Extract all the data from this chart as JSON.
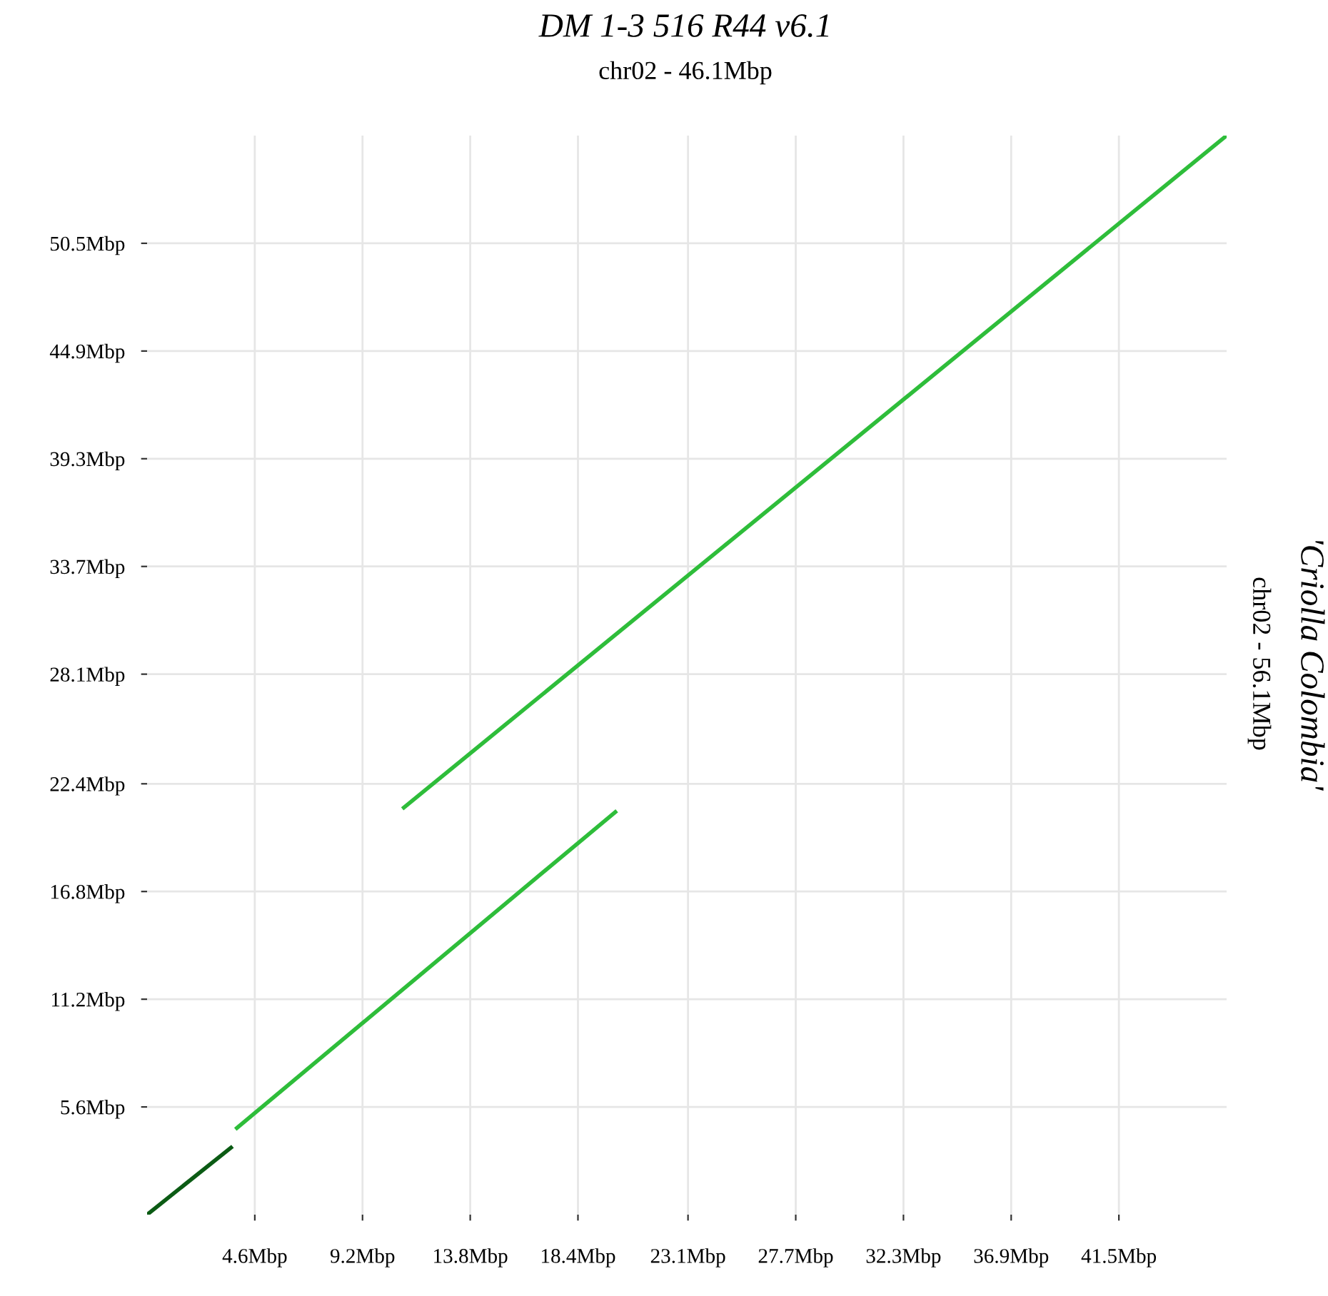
{
  "chart_data": {
    "type": "line",
    "title": "DM 1-3 516 R44 v6.1",
    "subtitle": "chr02 - 46.1Mbp",
    "ylabel": "'Criolla Colombia'\nchr02 - 56.1Mbp",
    "series": [
      {
        "color": "#0b5b14",
        "x": [
          0,
          3.65
        ],
        "values": [
          0,
          3.55
        ]
      },
      {
        "color": "#2ebd3a",
        "x": [
          3.77,
          20.06
        ],
        "values": [
          4.44,
          21.0
        ]
      },
      {
        "color": "#2ebd3a",
        "x": [
          10.9,
          46.1
        ],
        "values": [
          21.1,
          56.1
        ]
      }
    ],
    "xlim": [
      0,
      46.1
    ],
    "ylim": [
      0,
      56.1
    ],
    "xticks": [
      {
        "value": 4.6,
        "label": "4.6Mbp"
      },
      {
        "value": 9.2,
        "label": "9.2Mbp"
      },
      {
        "value": 13.8,
        "label": "13.8Mbp"
      },
      {
        "value": 18.4,
        "label": "18.4Mbp"
      },
      {
        "value": 23.1,
        "label": "23.1Mbp"
      },
      {
        "value": 27.7,
        "label": "27.7Mbp"
      },
      {
        "value": 32.3,
        "label": "32.3Mbp"
      },
      {
        "value": 36.9,
        "label": "36.9Mbp"
      },
      {
        "value": 41.5,
        "label": "41.5Mbp"
      }
    ],
    "yticks": [
      {
        "value": 5.6,
        "label": "5.6Mbp"
      },
      {
        "value": 11.2,
        "label": "11.2Mbp"
      },
      {
        "value": 16.8,
        "label": "16.8Mbp"
      },
      {
        "value": 22.4,
        "label": "22.4Mbp"
      },
      {
        "value": 28.1,
        "label": "28.1Mbp"
      },
      {
        "value": 33.7,
        "label": "33.7Mbp"
      },
      {
        "value": 39.3,
        "label": "39.3Mbp"
      },
      {
        "value": 44.9,
        "label": "44.9Mbp"
      },
      {
        "value": 50.5,
        "label": "50.5Mbp"
      }
    ],
    "grid": true
  }
}
